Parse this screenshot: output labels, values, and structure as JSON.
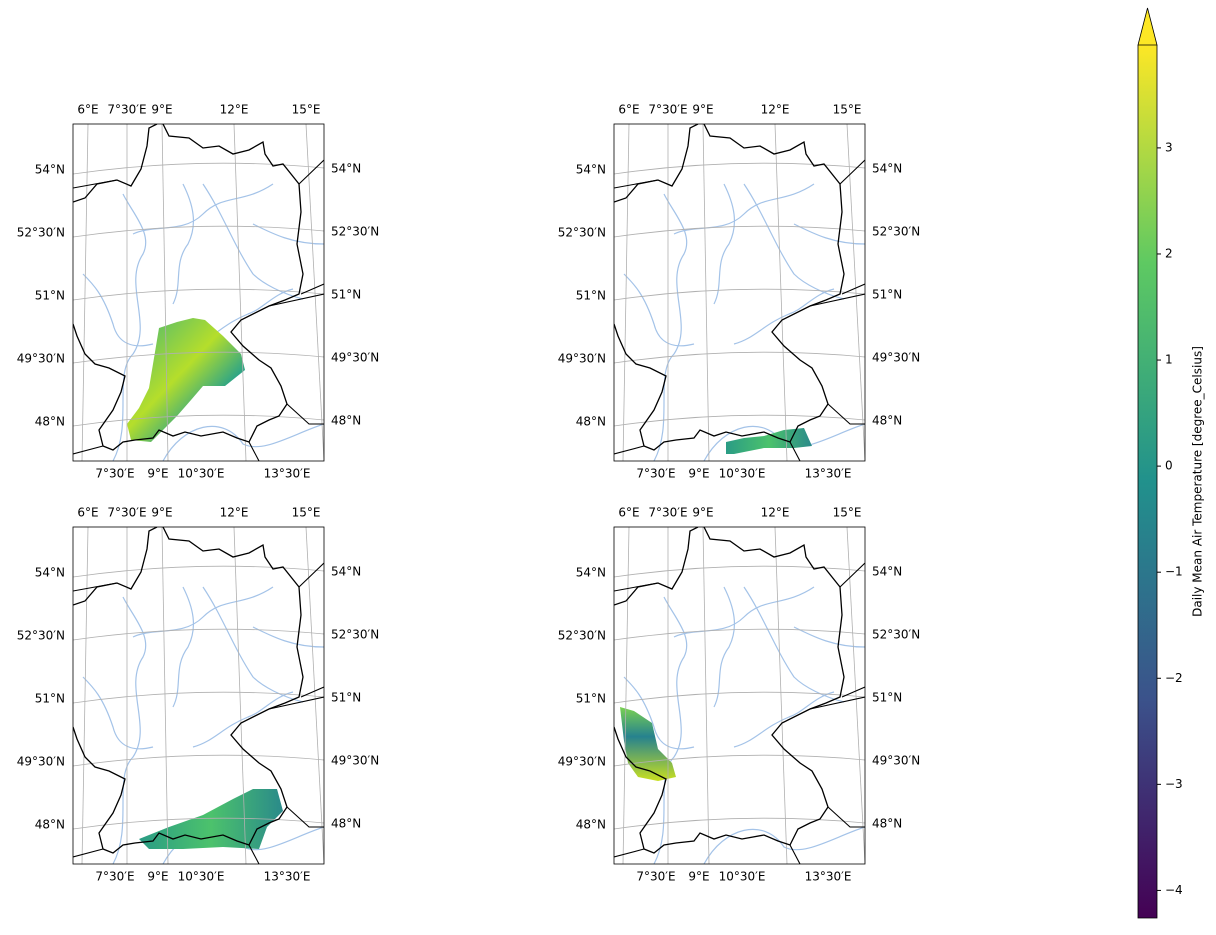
{
  "panels": [
    {
      "top_labels": [
        "6°E",
        "7°30′E",
        "9°E",
        "12°E",
        "15°E"
      ],
      "bottom_labels": [
        "7°30′E",
        "9°E",
        "10°30′E",
        "13°30′E"
      ],
      "left_labels": [
        "54°N",
        "52°30′N",
        "51°N",
        "49°30′N",
        "48°N"
      ],
      "right_labels": [
        "54°N",
        "52°30′N",
        "51°N",
        "49°30′N",
        "48°N"
      ]
    },
    {
      "top_labels": [
        "6°E",
        "7°30′E",
        "9°E",
        "12°E",
        "15°E"
      ],
      "bottom_labels": [
        "7°30′E",
        "9°E",
        "10°30′E",
        "13°30′E"
      ],
      "left_labels": [
        "54°N",
        "52°30′N",
        "51°N",
        "49°30′N",
        "48°N"
      ],
      "right_labels": [
        "54°N",
        "52°30′N",
        "51°N",
        "49°30′N",
        "48°N"
      ]
    },
    {
      "top_labels": [
        "6°E",
        "7°30′E",
        "9°E",
        "12°E",
        "15°E"
      ],
      "bottom_labels": [
        "7°30′E",
        "9°E",
        "10°30′E",
        "13°30′E"
      ],
      "left_labels": [
        "54°N",
        "52°30′N",
        "51°N",
        "49°30′N",
        "48°N"
      ],
      "right_labels": [
        "54°N",
        "52°30′N",
        "51°N",
        "49°30′N",
        "48°N"
      ]
    },
    {
      "top_labels": [
        "6°E",
        "7°30′E",
        "9°E",
        "12°E",
        "15°E"
      ],
      "bottom_labels": [
        "7°30′E",
        "9°E",
        "10°30′E",
        "13°30′E"
      ],
      "left_labels": [
        "54°N",
        "52°30′N",
        "51°N",
        "49°30′N",
        "48°N"
      ],
      "right_labels": [
        "54°N",
        "52°30′N",
        "51°N",
        "49°30′N",
        "48°N"
      ]
    }
  ],
  "colorbar": {
    "label": "Daily Mean Air Temperature [degree_Celsius]",
    "lim": [
      -4.26,
      3.97
    ],
    "ticks": [
      {
        "value": -4,
        "label": "−4"
      },
      {
        "value": -3,
        "label": "−3"
      },
      {
        "value": -2,
        "label": "−2"
      },
      {
        "value": -1,
        "label": "−1"
      },
      0,
      1,
      2,
      3
    ]
  }
}
